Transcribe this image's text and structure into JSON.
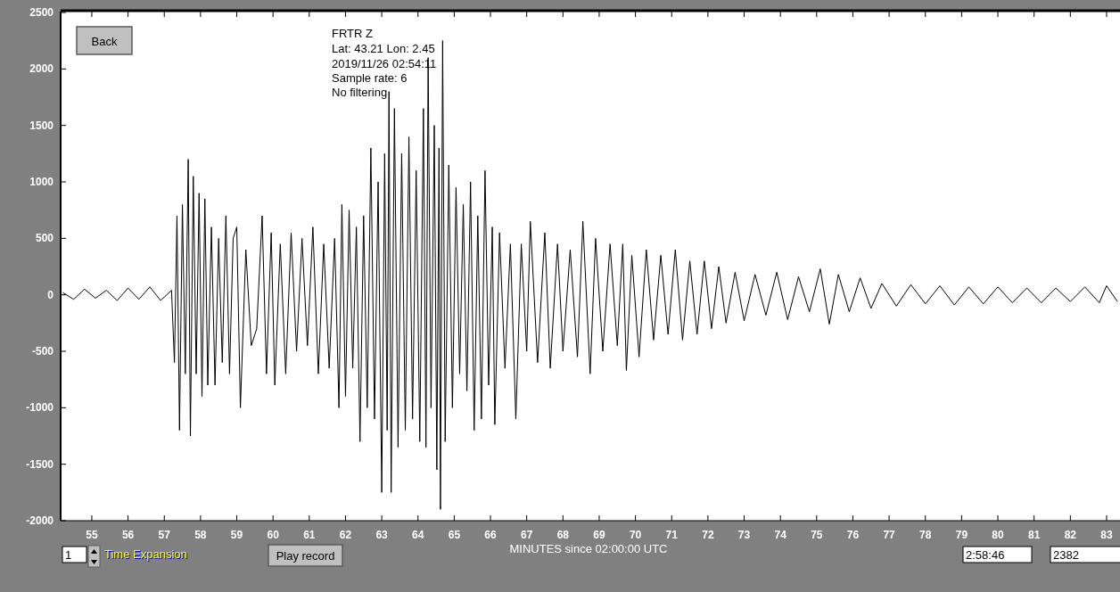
{
  "chart_data": {
    "type": "line",
    "title": "FRTR  Z",
    "xlabel": "MINUTES since 02:00:00 UTC",
    "annotations": [
      "Lat: 43.21 Lon: 2.45",
      "2019/11/26 02:54:11",
      "Sample rate: 6",
      "No filtering",
      "Back",
      "1",
      "Time Expansion",
      "Play record",
      "2:58:46",
      "2382"
    ],
    "xlim": [
      54.14,
      83.37
    ],
    "xticks": [
      55,
      56,
      57,
      58,
      59,
      60,
      61,
      62,
      63,
      64,
      65,
      66,
      67,
      68,
      69,
      70,
      71,
      72,
      73,
      74,
      75,
      76,
      77,
      78,
      79,
      80,
      81,
      82,
      83
    ],
    "ylim": [
      -2000,
      2500
    ],
    "yticks": [
      -2000,
      -1500,
      -1000,
      -500,
      0,
      500,
      1000,
      1500,
      2000,
      2500
    ],
    "grid": false,
    "series": [
      {
        "color": "#000000",
        "x": [
          54.2,
          54.5,
          54.8,
          55.1,
          55.4,
          55.7,
          56.0,
          56.3,
          56.6,
          56.9,
          57.2,
          57.28,
          57.35,
          57.42,
          57.5,
          57.58,
          57.66,
          57.72,
          57.8,
          57.88,
          57.96,
          58.04,
          58.12,
          58.2,
          58.3,
          58.4,
          58.5,
          58.6,
          58.7,
          58.8,
          58.9,
          59.0,
          59.1,
          59.25,
          59.4,
          59.55,
          59.7,
          59.82,
          59.95,
          60.05,
          60.2,
          60.35,
          60.5,
          60.65,
          60.8,
          60.95,
          61.1,
          61.25,
          61.4,
          61.55,
          61.7,
          61.82,
          61.9,
          62.0,
          62.1,
          62.2,
          62.3,
          62.4,
          62.5,
          62.6,
          62.7,
          62.8,
          62.9,
          63.0,
          63.08,
          63.15,
          63.2,
          63.26,
          63.35,
          63.45,
          63.55,
          63.65,
          63.75,
          63.85,
          63.95,
          64.05,
          64.15,
          64.22,
          64.28,
          64.36,
          64.45,
          64.52,
          64.58,
          64.62,
          64.68,
          64.75,
          64.85,
          64.95,
          65.05,
          65.15,
          65.25,
          65.35,
          65.45,
          65.55,
          65.65,
          65.75,
          65.85,
          65.95,
          66.05,
          66.12,
          66.25,
          66.4,
          66.55,
          66.7,
          66.85,
          67.0,
          67.1,
          67.3,
          67.5,
          67.65,
          67.85,
          68.0,
          68.2,
          68.4,
          68.55,
          68.75,
          68.9,
          69.1,
          69.3,
          69.5,
          69.65,
          69.75,
          69.9,
          70.1,
          70.3,
          70.5,
          70.7,
          70.9,
          71.1,
          71.3,
          71.5,
          71.7,
          71.9,
          72.1,
          72.3,
          72.5,
          72.75,
          73.0,
          73.3,
          73.6,
          73.9,
          74.2,
          74.5,
          74.8,
          75.1,
          75.35,
          75.6,
          75.9,
          76.2,
          76.5,
          76.8,
          77.2,
          77.6,
          78.0,
          78.4,
          78.8,
          79.2,
          79.6,
          80.0,
          80.4,
          80.8,
          81.2,
          81.6,
          82.0,
          82.4,
          82.8,
          83.0,
          83.3
        ],
        "values": [
          20,
          -40,
          50,
          -30,
          40,
          -50,
          60,
          -40,
          70,
          -50,
          40,
          -600,
          700,
          -1200,
          800,
          -700,
          1200,
          -1250,
          1050,
          -700,
          900,
          -900,
          850,
          -800,
          600,
          -800,
          500,
          -600,
          700,
          -700,
          500,
          600,
          -1000,
          400,
          -450,
          -300,
          700,
          -700,
          550,
          -800,
          450,
          -700,
          550,
          -500,
          500,
          -450,
          600,
          -700,
          450,
          -650,
          500,
          -1000,
          800,
          -900,
          750,
          -650,
          600,
          -1300,
          700,
          -1000,
          1300,
          -1100,
          1000,
          -1750,
          1250,
          -1200,
          1800,
          -1750,
          1650,
          -1350,
          1250,
          -1200,
          1400,
          -1100,
          1100,
          -1300,
          1650,
          -1350,
          2100,
          -1000,
          1500,
          -1550,
          1300,
          -1900,
          2250,
          -1300,
          1150,
          -1000,
          950,
          -700,
          800,
          -850,
          1000,
          -1200,
          700,
          -1100,
          1100,
          -800,
          600,
          -1150,
          550,
          -650,
          450,
          -1100,
          450,
          -500,
          650,
          -600,
          550,
          -650,
          450,
          -500,
          400,
          -550,
          650,
          -700,
          500,
          -500,
          450,
          -450,
          450,
          -670,
          350,
          -550,
          400,
          -400,
          350,
          -350,
          400,
          -400,
          300,
          -350,
          300,
          -300,
          250,
          -250,
          200,
          -230,
          180,
          -180,
          200,
          -220,
          160,
          -150,
          230,
          -260,
          180,
          -150,
          150,
          -120,
          100,
          -100,
          90,
          -80,
          80,
          -90,
          70,
          -80,
          70,
          -70,
          60,
          -70,
          60,
          -60,
          70,
          -70,
          80,
          -60
        ]
      }
    ]
  }
}
